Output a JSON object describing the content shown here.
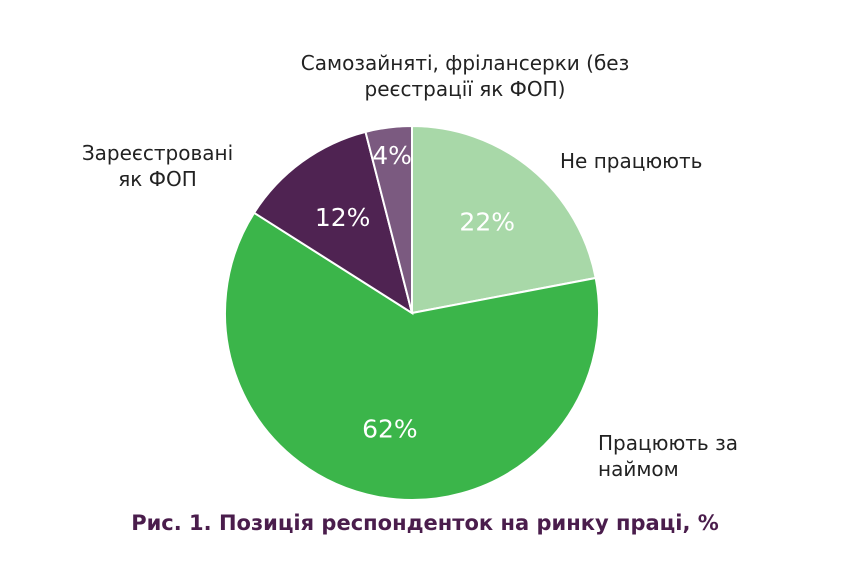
{
  "chart_data": {
    "type": "pie",
    "title": "Рис. 1. Позиція респонденток на ринку праці, %",
    "slices": [
      {
        "label": "Не працюють",
        "value": 22,
        "value_label": "22%",
        "color": "#a8d8a8"
      },
      {
        "label": "Працюють за наймом",
        "value": 62,
        "value_label": "62%",
        "color": "#3bb54a"
      },
      {
        "label": "Зареєстровані як ФОП",
        "value": 12,
        "value_label": "12%",
        "color": "#4f2352"
      },
      {
        "label": "Самозайняті, фрілансерки (без реєстрації як ФОП)",
        "value": 4,
        "value_label": "4%",
        "color": "#7b5a80"
      }
    ]
  }
}
